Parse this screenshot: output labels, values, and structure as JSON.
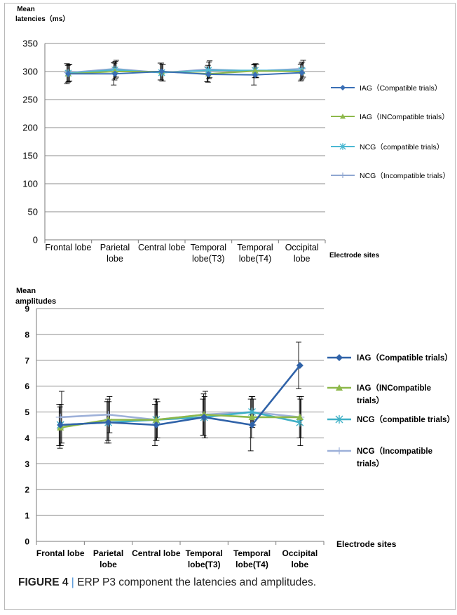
{
  "figure": {
    "label": "FIGURE 4",
    "separator": "|",
    "caption": "ERP P3 component the latencies and amplitudes."
  },
  "chart_data": [
    {
      "type": "line",
      "ylabel_line1": "Mean",
      "ylabel_line2": "latencies（ms）",
      "xlabel": "Electrode sites",
      "categories": [
        "Frontal lobe",
        "Parietal lobe",
        "Central lobe",
        "Temporal lobe(T3)",
        "Temporal lobe(T4)",
        "Occipital lobe"
      ],
      "category_lines": [
        [
          "Frontal lobe"
        ],
        [
          "Parietal",
          "lobe"
        ],
        [
          "Central lobe"
        ],
        [
          "Temporal",
          "lobe(T3)"
        ],
        [
          "Temporal",
          "lobe(T4)"
        ],
        [
          "Occipital",
          "lobe"
        ]
      ],
      "ylim": [
        0,
        350
      ],
      "yticks": [
        0,
        50,
        100,
        150,
        200,
        250,
        300,
        350
      ],
      "grid": true,
      "legend_position": "right",
      "series": [
        {
          "name": "IAG（Compatible trials）",
          "legend_lines": [
            "IAG（Compatible trials）"
          ],
          "color": "#3a6fb5",
          "marker": "diamond",
          "values": [
            296,
            296,
            300,
            295,
            294,
            298
          ],
          "err": [
            18,
            20,
            15,
            13,
            18,
            15
          ]
        },
        {
          "name": "IAG（INCompatible trials）",
          "legend_lines": [
            "IAG（INCompatible trials）"
          ],
          "color": "#8db84a",
          "marker": "triangle",
          "values": [
            296,
            300,
            300,
            296,
            301,
            300
          ],
          "err": [
            15,
            15,
            15,
            15,
            12,
            15
          ]
        },
        {
          "name": "NCG（compatible trials）",
          "legend_lines": [
            "NCG（compatible trials）"
          ],
          "color": "#4bb8d2",
          "marker": "star",
          "values": [
            297,
            303,
            298,
            302,
            302,
            302
          ],
          "err": [
            15,
            15,
            15,
            15,
            12,
            15
          ]
        },
        {
          "name": "NCG（Incompatible trials）",
          "legend_lines": [
            "NCG（Incompatible trials）"
          ],
          "color": "#8fa7d1",
          "marker": "plus",
          "values": [
            298,
            305,
            298,
            304,
            301,
            305
          ],
          "err": [
            15,
            15,
            15,
            15,
            12,
            15
          ]
        }
      ]
    },
    {
      "type": "line",
      "ylabel_line1": "Mean",
      "ylabel_line2": "amplitudes",
      "xlabel": "Electrode  sites",
      "categories": [
        "Frontal lobe",
        "Parietal lobe",
        "Central lobe",
        "Temporal lobe(T3)",
        "Temporal lobe(T4)",
        "Occipital lobe"
      ],
      "category_lines": [
        [
          "Frontal lobe"
        ],
        [
          "Parietal",
          "lobe"
        ],
        [
          "Central lobe"
        ],
        [
          "Temporal",
          "lobe(T3)"
        ],
        [
          "Temporal",
          "lobe(T4)"
        ],
        [
          "Occipital",
          "lobe"
        ]
      ],
      "ylim": [
        0,
        9
      ],
      "yticks": [
        0,
        1,
        2,
        3,
        4,
        5,
        6,
        7,
        8,
        9
      ],
      "grid": true,
      "legend_position": "right",
      "series": [
        {
          "name": "IAG（Compatible trials）",
          "legend_lines": [
            "IAG（Compatible trials）"
          ],
          "color": "#2f62a8",
          "marker": "diamond",
          "values": [
            4.5,
            4.6,
            4.5,
            4.8,
            4.5,
            6.8
          ],
          "err": [
            0.8,
            0.8,
            0.8,
            0.7,
            1.0,
            0.9
          ]
        },
        {
          "name": "IAG（INCompatible trials）",
          "legend_lines": [
            "IAG（INCompatible",
            "trials）"
          ],
          "color": "#8db84a",
          "marker": "triangle",
          "values": [
            4.4,
            4.7,
            4.7,
            4.9,
            4.8,
            4.8
          ],
          "err": [
            0.8,
            0.8,
            0.8,
            0.8,
            0.8,
            0.8
          ]
        },
        {
          "name": "NCG（compatible trials）",
          "legend_lines": [
            "NCG（compatible trials）"
          ],
          "color": "#3fb0c6",
          "marker": "star",
          "values": [
            4.5,
            4.6,
            4.7,
            4.8,
            5.0,
            4.6
          ],
          "err": [
            0.8,
            0.8,
            0.8,
            0.8,
            0.6,
            0.9
          ]
        },
        {
          "name": "NCG（Incompatible trials）",
          "legend_lines": [
            "NCG（Incompatible",
            "trials）"
          ],
          "color": "#9db0d9",
          "marker": "plus",
          "values": [
            4.8,
            4.9,
            4.7,
            4.9,
            5.0,
            4.8
          ],
          "err": [
            1.0,
            0.7,
            0.7,
            0.9,
            0.5,
            0.8
          ]
        }
      ]
    }
  ]
}
